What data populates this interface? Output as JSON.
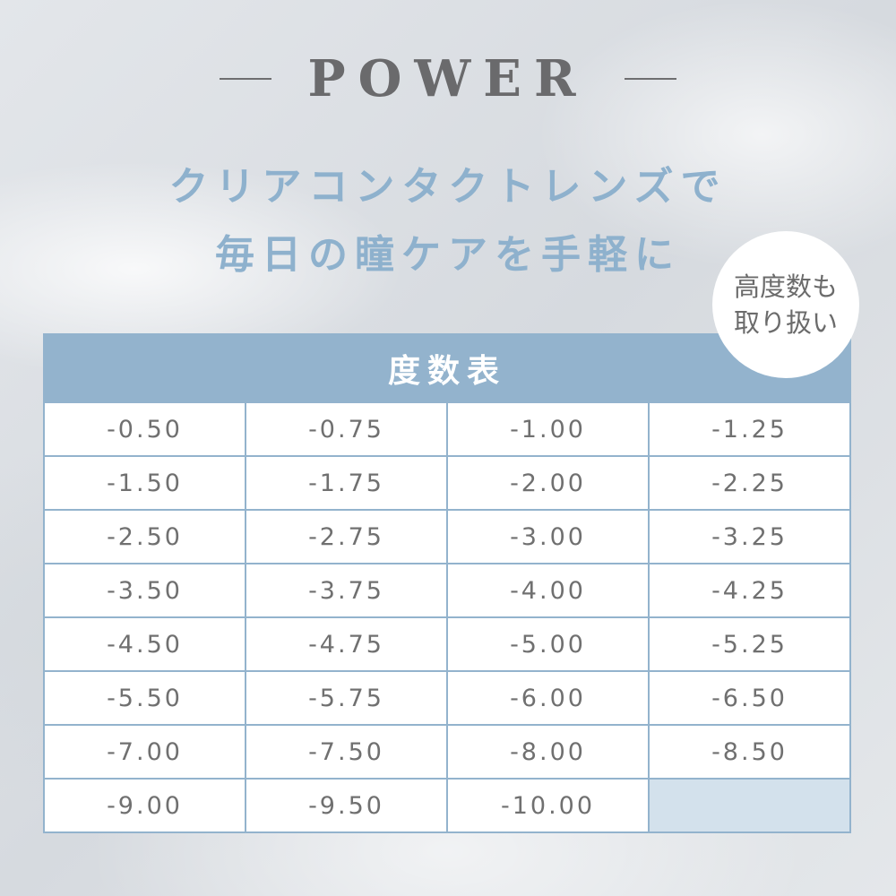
{
  "title": "POWER",
  "subtitle_lines": [
    "クリアコンタクトレンズで",
    "毎日の瞳ケアを手軽に"
  ],
  "badge": {
    "lines": [
      "高度数も",
      "取り扱い"
    ]
  },
  "table": {
    "header": "度数表",
    "cells": [
      "-0.50",
      "-0.75",
      "-1.00",
      "-1.25",
      "-1.50",
      "-1.75",
      "-2.00",
      "-2.25",
      "-2.50",
      "-2.75",
      "-3.00",
      "-3.25",
      "-3.50",
      "-3.75",
      "-4.00",
      "-4.25",
      "-4.50",
      "-4.75",
      "-5.00",
      "-5.25",
      "-5.50",
      "-5.75",
      "-6.00",
      "-6.50",
      "-7.00",
      "-7.50",
      "-8.00",
      "-8.50",
      "-9.00",
      "-9.50",
      "-10.00",
      ""
    ]
  },
  "colors": {
    "accent": "#93b3cd",
    "subtitle": "#8eb1cd",
    "text": "#707070",
    "empty_cell": "#d3e1ec"
  }
}
